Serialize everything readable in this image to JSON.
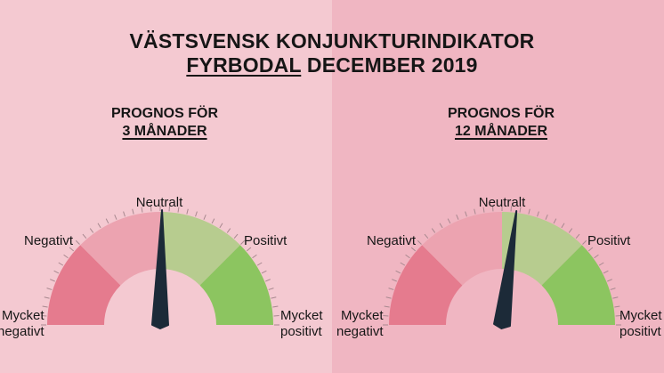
{
  "title": {
    "line1": "VÄSTSVENSK KONJUNKTURINDIKATOR",
    "region": "FYRBODAL",
    "period": "DECEMBER 2019"
  },
  "colors": {
    "bg_left": "#f4c9d1",
    "bg_right": "#f0b6c2",
    "very_negative": "#e57b8e",
    "negative": "#eca3b0",
    "positive": "#b7cc8f",
    "very_positive": "#8cc560",
    "needle": "#1c2a38",
    "tick": "#a8888f"
  },
  "gauges": [
    {
      "heading": "PROGNOS FÖR",
      "horizon": "3 MÅNADER",
      "value": 0.01,
      "labels": {
        "very_negative_1": "Mycket",
        "very_negative_2": "negativt",
        "negative": "Negativt",
        "neutral": "Neutralt",
        "positive": "Positivt",
        "very_positive_1": "Mycket",
        "very_positive_2": "positivt"
      }
    },
    {
      "heading": "PROGNOS FÖR",
      "horizon": "12 MÅNADER",
      "value": 0.08,
      "labels": {
        "very_negative_1": "Mycket",
        "very_negative_2": "negativt",
        "negative": "Negativt",
        "neutral": "Neutralt",
        "positive": "Positivt",
        "very_positive_1": "Mycket",
        "very_positive_2": "positivt"
      }
    }
  ]
}
